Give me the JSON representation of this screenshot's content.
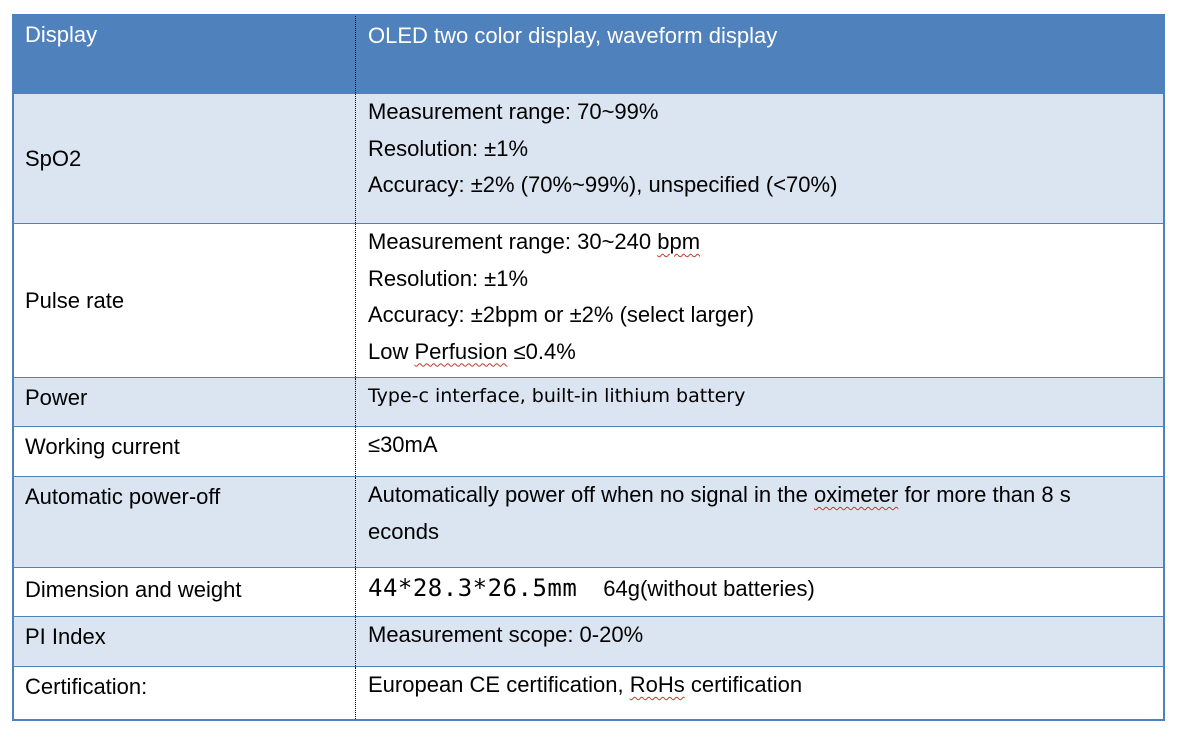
{
  "rows": [
    {
      "label": "Display",
      "lines": [
        "OLED two color display, waveform display"
      ]
    },
    {
      "label": "SpO2",
      "lines": [
        "Measurement range: 70~99%",
        "Resolution: ±1%",
        "Accuracy: ±2% (70%~99%), unspecified (<70%)"
      ]
    },
    {
      "label": "Pulse rate",
      "lines": [
        "Measurement range: 30~240 ",
        "Resolution: ±1%",
        "Accuracy: ±2bpm or ±2% (select larger)",
        "Low "
      ]
    },
    {
      "label": "Power",
      "lines": [
        "Type-c interface, built-in lithium battery"
      ]
    },
    {
      "label": "Working current",
      "lines": [
        "≤30mA"
      ]
    },
    {
      "label": "Automatic power-off",
      "lines": [
        "Automatically power off when no signal in the ",
        " for more than 8 s",
        "econds"
      ]
    },
    {
      "label": "Dimension and weight",
      "lines": [
        "44*28.3*26.5mm",
        "64g(without batteries)"
      ]
    },
    {
      "label": "PI Index",
      "lines": [
        "Measurement scope: 0-20%"
      ]
    },
    {
      "label": "Certification:",
      "lines": [
        "European CE certification, ",
        " certification"
      ]
    }
  ],
  "underlined": {
    "bpm": "bpm",
    "perfusion": "Perfusion",
    "perfusion_tail": " ≤0.4%",
    "oximeter": "oximeter",
    "rohs": "RoHs"
  },
  "colors": {
    "header_bg": "#4f81bd",
    "shaded_bg": "#dbe5f1",
    "border": "#4f81bd"
  }
}
